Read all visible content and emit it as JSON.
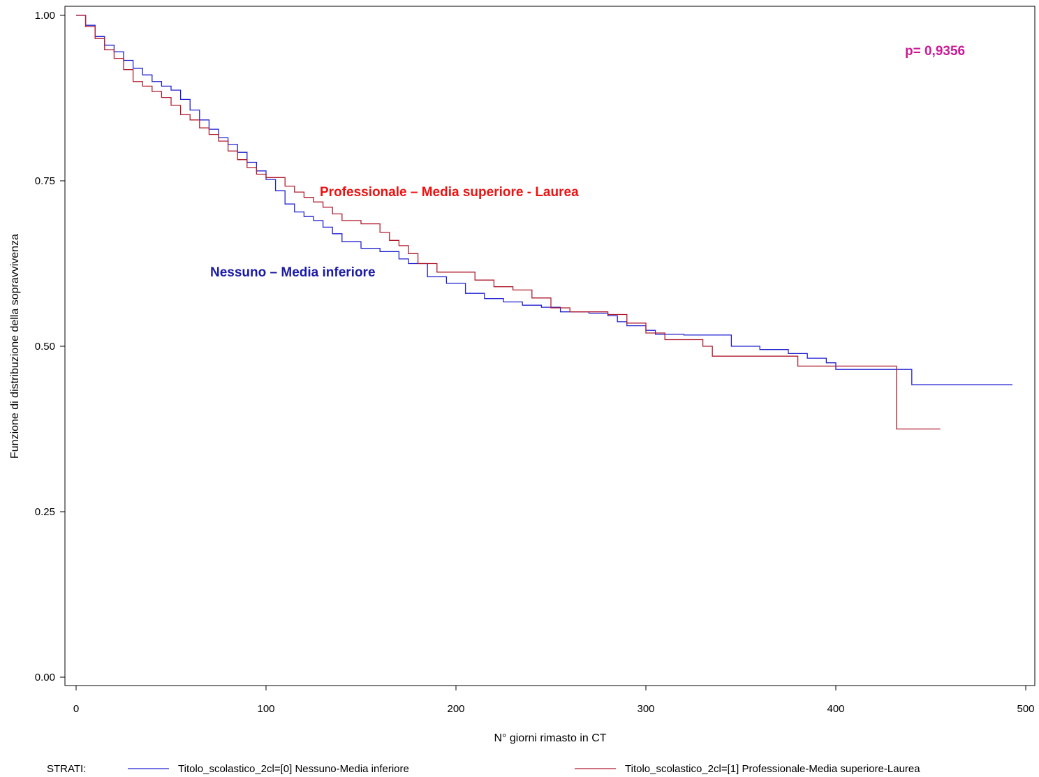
{
  "chart_data": {
    "type": "line",
    "subtype": "kaplan-meier step curve",
    "xlabel": "N° giorni rimasto in CT",
    "ylabel": "Funzione di distribuzione della sopravvivenza",
    "xlim": [
      0,
      500
    ],
    "ylim": [
      0,
      1
    ],
    "x_ticks": [
      "0",
      "100",
      "200",
      "300",
      "400",
      "500"
    ],
    "y_ticks": [
      "0.00",
      "0.25",
      "0.50",
      "0.75",
      "1.00"
    ],
    "grid": false,
    "p_value_label": "p= 0,9356",
    "legend": {
      "position": "bottom",
      "title": "STRATI:"
    },
    "annotations": [
      {
        "text": "Professionale – Media superiore - Laurea",
        "color": "#ee1111",
        "series": 1
      },
      {
        "text": "Nessuno – Media inferiore",
        "color": "#1a1aa6",
        "series": 0
      }
    ],
    "series": [
      {
        "name": "Titolo_scolastico_2cl=[0] Nessuno-Media inferiore",
        "color": "#2020d0",
        "points": [
          [
            0,
            1.0
          ],
          [
            5,
            0.985
          ],
          [
            10,
            0.968
          ],
          [
            15,
            0.955
          ],
          [
            20,
            0.945
          ],
          [
            25,
            0.932
          ],
          [
            30,
            0.92
          ],
          [
            35,
            0.91
          ],
          [
            40,
            0.9
          ],
          [
            45,
            0.893
          ],
          [
            50,
            0.887
          ],
          [
            55,
            0.873
          ],
          [
            60,
            0.857
          ],
          [
            65,
            0.842
          ],
          [
            70,
            0.828
          ],
          [
            75,
            0.815
          ],
          [
            80,
            0.805
          ],
          [
            85,
            0.793
          ],
          [
            90,
            0.778
          ],
          [
            95,
            0.765
          ],
          [
            100,
            0.752
          ],
          [
            105,
            0.735
          ],
          [
            110,
            0.715
          ],
          [
            115,
            0.703
          ],
          [
            120,
            0.696
          ],
          [
            125,
            0.69
          ],
          [
            130,
            0.68
          ],
          [
            135,
            0.67
          ],
          [
            140,
            0.658
          ],
          [
            150,
            0.648
          ],
          [
            160,
            0.643
          ],
          [
            170,
            0.632
          ],
          [
            175,
            0.625
          ],
          [
            185,
            0.605
          ],
          [
            195,
            0.595
          ],
          [
            205,
            0.58
          ],
          [
            215,
            0.572
          ],
          [
            225,
            0.567
          ],
          [
            235,
            0.562
          ],
          [
            245,
            0.559
          ],
          [
            255,
            0.552
          ],
          [
            270,
            0.55
          ],
          [
            280,
            0.546
          ],
          [
            285,
            0.537
          ],
          [
            290,
            0.531
          ],
          [
            300,
            0.524
          ],
          [
            305,
            0.518
          ],
          [
            320,
            0.517
          ],
          [
            345,
            0.5
          ],
          [
            360,
            0.495
          ],
          [
            375,
            0.489
          ],
          [
            385,
            0.482
          ],
          [
            395,
            0.475
          ],
          [
            400,
            0.465
          ],
          [
            410,
            0.465
          ],
          [
            440,
            0.442
          ],
          [
            493,
            0.442
          ]
        ]
      },
      {
        "name": "Titolo_scolastico_2cl=[1] Professionale-Media superiore-Laurea",
        "color": "#b01c2e",
        "points": [
          [
            0,
            1.0
          ],
          [
            5,
            0.983
          ],
          [
            10,
            0.965
          ],
          [
            15,
            0.948
          ],
          [
            20,
            0.935
          ],
          [
            25,
            0.918
          ],
          [
            30,
            0.9
          ],
          [
            35,
            0.893
          ],
          [
            40,
            0.885
          ],
          [
            45,
            0.876
          ],
          [
            50,
            0.864
          ],
          [
            55,
            0.85
          ],
          [
            60,
            0.842
          ],
          [
            65,
            0.83
          ],
          [
            70,
            0.82
          ],
          [
            75,
            0.81
          ],
          [
            80,
            0.795
          ],
          [
            85,
            0.782
          ],
          [
            90,
            0.77
          ],
          [
            95,
            0.76
          ],
          [
            100,
            0.755
          ],
          [
            110,
            0.742
          ],
          [
            115,
            0.733
          ],
          [
            120,
            0.725
          ],
          [
            125,
            0.718
          ],
          [
            130,
            0.71
          ],
          [
            135,
            0.7
          ],
          [
            140,
            0.69
          ],
          [
            150,
            0.685
          ],
          [
            160,
            0.672
          ],
          [
            165,
            0.66
          ],
          [
            170,
            0.652
          ],
          [
            175,
            0.64
          ],
          [
            180,
            0.625
          ],
          [
            190,
            0.612
          ],
          [
            200,
            0.612
          ],
          [
            210,
            0.6
          ],
          [
            220,
            0.59
          ],
          [
            230,
            0.585
          ],
          [
            240,
            0.573
          ],
          [
            250,
            0.558
          ],
          [
            260,
            0.552
          ],
          [
            280,
            0.548
          ],
          [
            290,
            0.535
          ],
          [
            300,
            0.52
          ],
          [
            310,
            0.51
          ],
          [
            325,
            0.51
          ],
          [
            330,
            0.5
          ],
          [
            335,
            0.485
          ],
          [
            380,
            0.47
          ],
          [
            400,
            0.47
          ],
          [
            432,
            0.375
          ],
          [
            455,
            0.375
          ]
        ]
      }
    ]
  }
}
